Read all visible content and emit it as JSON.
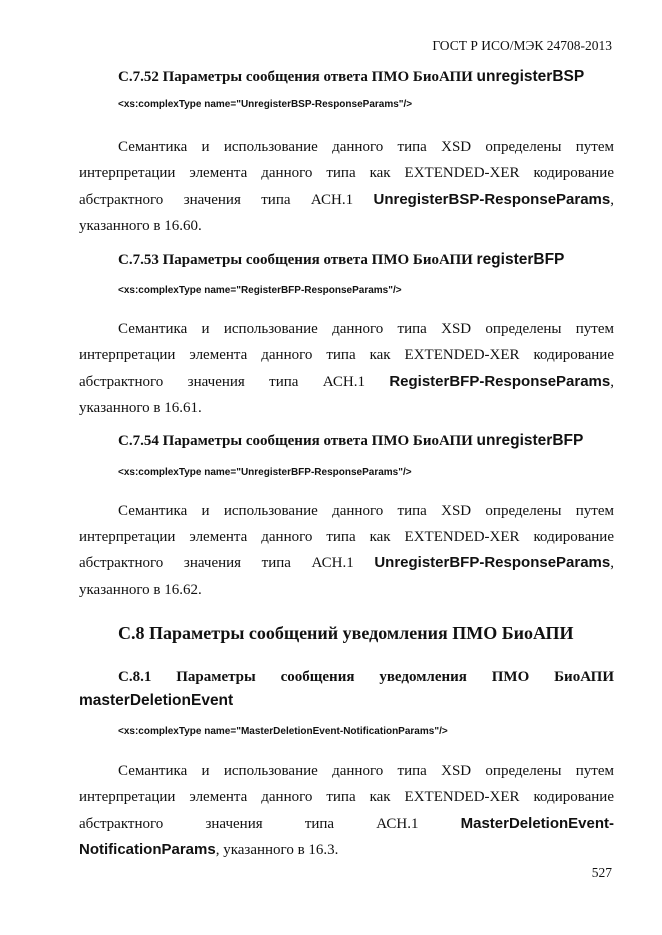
{
  "header": "ГОСТ Р ИСО/МЭК 24708-2013",
  "sections": [
    {
      "heading": "С.7.52 Параметры сообщения ответа ПМО БиоАПИ ",
      "heading_code": "unregisterBSP",
      "xs": "<xs:complexType name=\"UnregisterBSP-ResponseParams\"/>",
      "line1": "Семантика и использование данного типа XSD определены путем",
      "line2": "интерпретации элемента данного типа как EXTENDED-XER кодирование",
      "line3": "абстрактного значения типа АСН.1 ",
      "line3_code": "UnregisterBSP-ResponseParams",
      "line3_post": ",",
      "line4": "указанного в 16.60."
    },
    {
      "heading": "С.7.53 Параметры сообщения ответа ПМО БиоАПИ ",
      "heading_code": "registerBFP",
      "xs": "<xs:complexType name=\"RegisterBFP-ResponseParams\"/>",
      "line1": "Семантика и использование данного типа XSD определены путем",
      "line2": "интерпретации элемента данного типа как EXTENDED-XER кодирование",
      "line3": "абстрактного значения типа АСН.1 ",
      "line3_code": "RegisterBFP-ResponseParams",
      "line3_post": ",",
      "line4": "указанного в 16.61."
    },
    {
      "heading": "С.7.54 Параметры сообщения ответа ПМО БиоАПИ ",
      "heading_code": "unregisterBFP",
      "xs": "<xs:complexType name=\"UnregisterBFP-ResponseParams\"/>",
      "line1": "Семантика и использование данного типа XSD определены путем",
      "line2": "интерпретации элемента данного типа как EXTENDED-XER кодирование",
      "line3": "абстрактного значения типа АСН.1 ",
      "line3_code": "UnregisterBFP-ResponseParams",
      "line3_post": ",",
      "line4": "указанного в 16.62."
    }
  ],
  "c8": {
    "heading": "С.8 Параметры сообщений уведомления ПМО БиоАПИ",
    "sub_heading": "С.8.1 Параметры сообщения уведомления ПМО БиоАПИ",
    "sub_heading_code": "masterDeletionEvent",
    "xs": "<xs:complexType name=\"MasterDeletionEvent-NotificationParams\"/>",
    "line1": "Семантика и использование данного типа XSD определены путем",
    "line2": "интерпретации элемента данного типа как EXTENDED-XER кодирование",
    "line3": "абстрактного значения типа АСН.1 ",
    "line3_code": "MasterDeletionEvent-",
    "line4_code": "NotificationParams",
    "line4": ", указанного в 16.3."
  },
  "page_number": "527"
}
